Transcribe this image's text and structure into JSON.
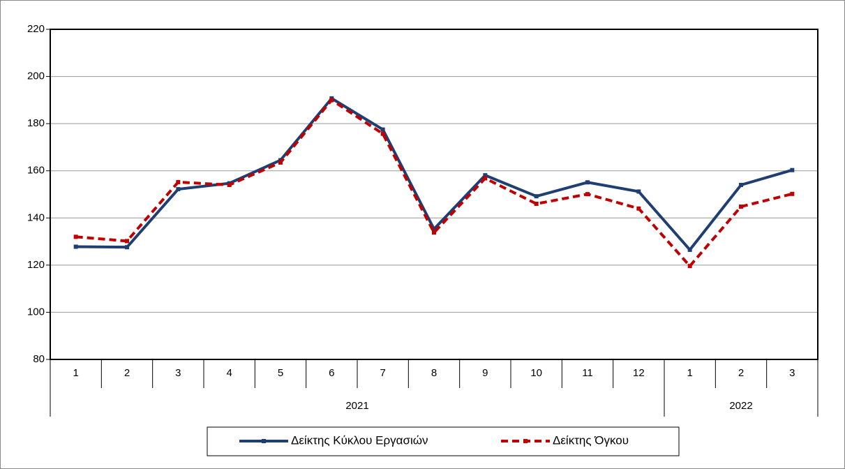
{
  "chart_data": {
    "type": "line",
    "categories": [
      "1",
      "2",
      "3",
      "4",
      "5",
      "6",
      "7",
      "8",
      "9",
      "10",
      "11",
      "12",
      "1",
      "2",
      "3"
    ],
    "x_groups": [
      {
        "label": "2021",
        "count": 12
      },
      {
        "label": "2022",
        "count": 3
      }
    ],
    "series": [
      {
        "name": "Δείκτης Κύκλου Εργασιών",
        "color": "#1f3f73",
        "dash": "none",
        "values": [
          127.8,
          127.6,
          152.2,
          154.7,
          164.5,
          190.7,
          177.5,
          135.3,
          158.1,
          149.2,
          155.1,
          151.2,
          126.5,
          154.0,
          160.3
        ]
      },
      {
        "name": "Δείκτης Όγκου",
        "color": "#c00000",
        "dash": "dashed",
        "values": [
          132.0,
          130.2,
          155.2,
          154.0,
          163.5,
          190.0,
          175.7,
          133.8,
          156.8,
          146.0,
          150.1,
          144.0,
          119.6,
          144.8,
          150.2
        ]
      }
    ],
    "ylim": [
      80,
      220
    ],
    "yticks": [
      80,
      100,
      120,
      140,
      160,
      180,
      200,
      220
    ],
    "grid": true,
    "legend": "bottom"
  }
}
